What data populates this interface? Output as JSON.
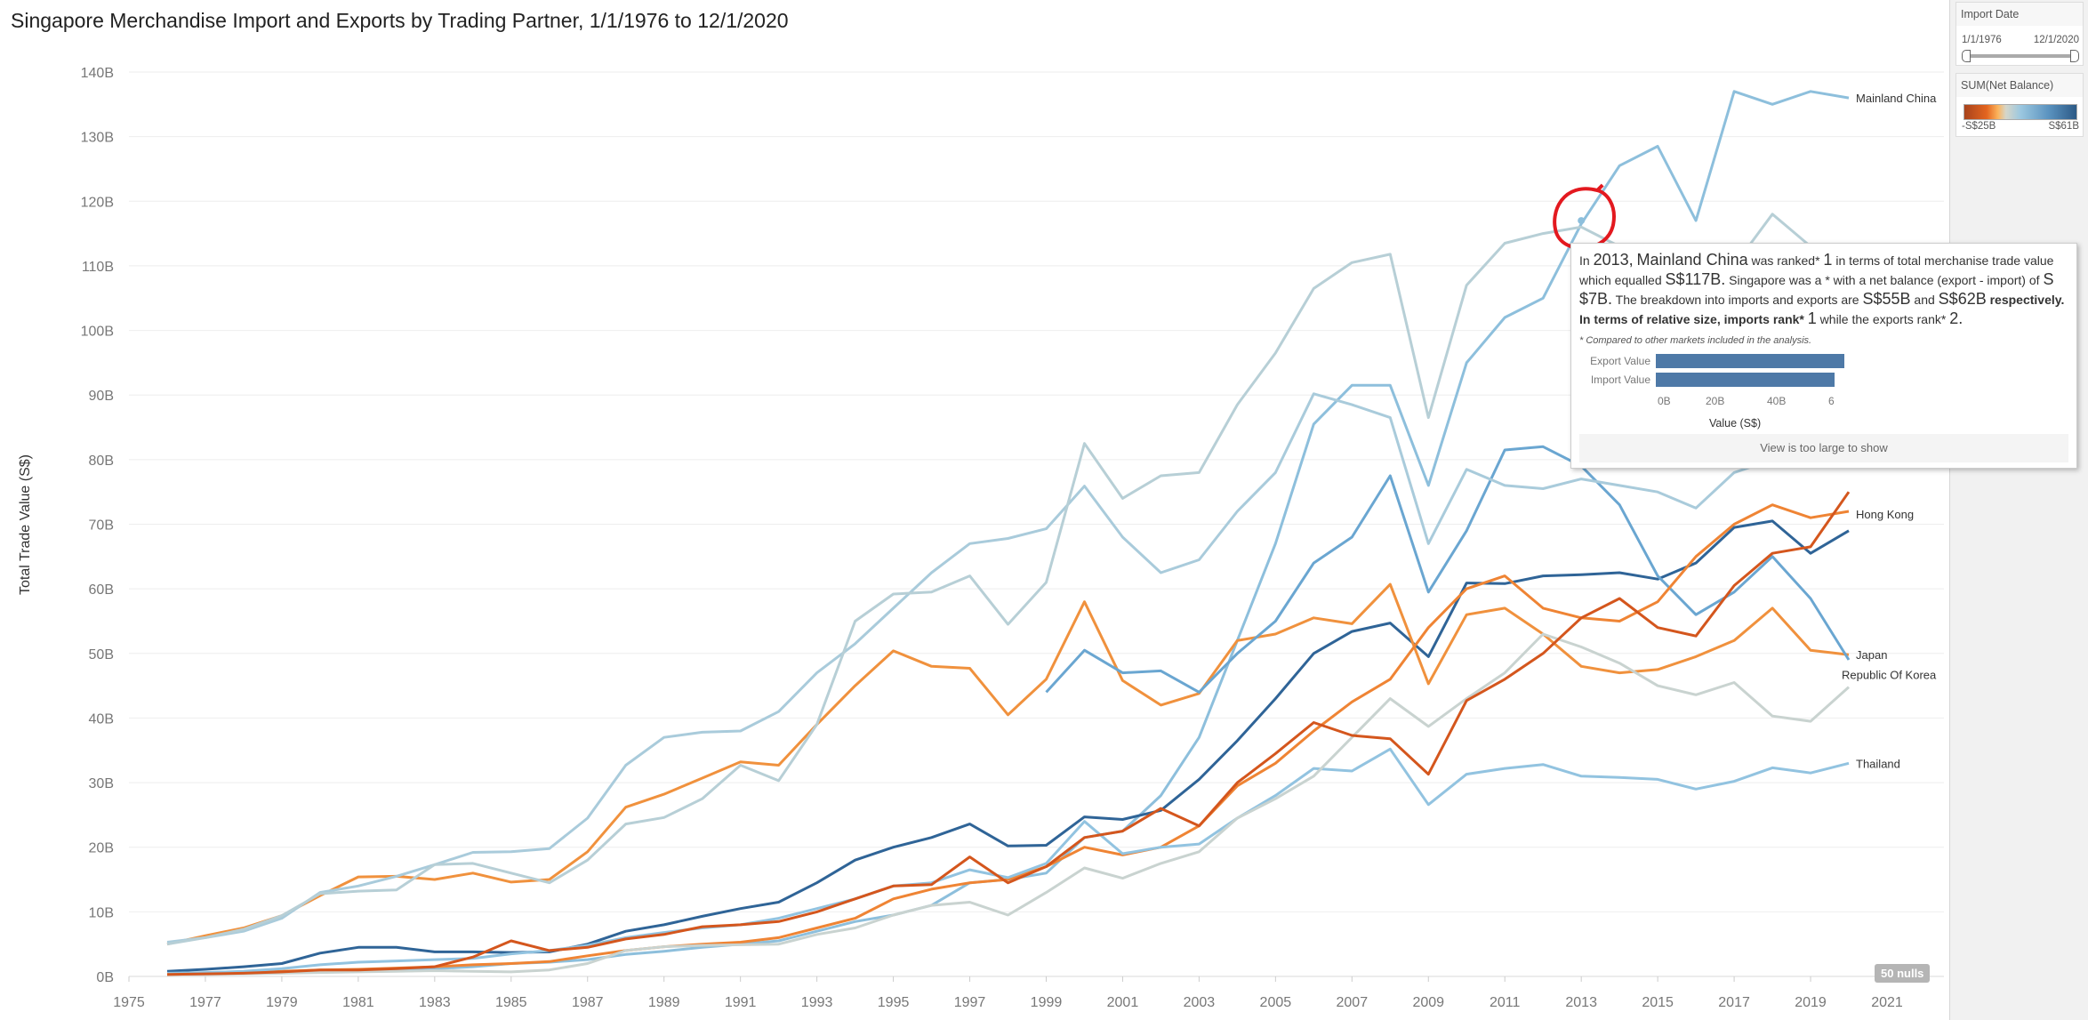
{
  "title": "Singapore Merchandise Import and Exports by Trading Partner, 1/1/1976 to 12/1/2020",
  "filters": {
    "import_date": {
      "label": "Import Date",
      "start": "1/1/1976",
      "end": "12/1/2020"
    },
    "net_balance": {
      "label": "SUM(Net Balance)",
      "min": "-S$25B",
      "max": "S$61B"
    }
  },
  "nulls_badge": "50 nulls",
  "tooltip": {
    "p1": "In ",
    "year": "2013,",
    "country": "Mainland China",
    "p2": " was ranked* ",
    "rank": "1",
    "p3": " in terms of total merchanise trade value which equalled ",
    "total": "S$117B.",
    "p4": " Singapore was a * with a net balance (export - import) of ",
    "net": "S $7B.",
    "p5": " The breakdown into imports and exports are ",
    "imports": "S$55B",
    "p6": " and ",
    "exports": "S$62B",
    "p7": " respectively.",
    "p8": "In terms of relative size, imports rank* ",
    "irank": "1",
    "p9": " while the exports rank* ",
    "erank": "2.",
    "note": "* Compared to other markets included in the analysis.",
    "bar_chart": {
      "labels": [
        "Export Value",
        "Import Value"
      ],
      "values": [
        62,
        55
      ],
      "ticks": [
        "0B",
        "20B",
        "40B",
        "6"
      ],
      "axis_label": "Value (S$)",
      "max": 58
    },
    "view_message": "View is too large to show"
  },
  "chart_data": {
    "type": "line",
    "title": "Singapore Merchandise Import and Exports by Trading Partner, 1/1/1976 to 12/1/2020",
    "xlabel": "",
    "ylabel": "Total Trade Value (S$)",
    "ylim": [
      0,
      140
    ],
    "xlim": [
      1975,
      2021
    ],
    "x_start": 1976,
    "x_ticks": [
      "1975",
      "1977",
      "1979",
      "1981",
      "1983",
      "1985",
      "1987",
      "1989",
      "1991",
      "1993",
      "1995",
      "1997",
      "1999",
      "2001",
      "2003",
      "2005",
      "2007",
      "2009",
      "2011",
      "2013",
      "2015",
      "2017",
      "2019",
      "2021"
    ],
    "y_ticks": [
      "0B",
      "10B",
      "20B",
      "30B",
      "40B",
      "50B",
      "60B",
      "70B",
      "80B",
      "90B",
      "100B",
      "110B",
      "120B",
      "130B",
      "140B"
    ],
    "highlight": {
      "year": 2013,
      "value": 117
    },
    "series": [
      {
        "label": "Mainland China",
        "color": "#8dbfdc",
        "values": [
          0.3,
          0.4,
          0.5,
          0.6,
          0.8,
          1.0,
          1.1,
          1.2,
          1.5,
          2.0,
          2.2,
          2.6,
          3.4,
          3.9,
          4.5,
          5.0,
          5.5,
          7.0,
          8.5,
          9.5,
          11,
          14.5,
          15,
          16,
          21.5,
          22.5,
          28,
          37,
          52,
          67,
          85.5,
          91.5,
          91.5,
          76,
          95,
          102,
          105,
          116.5,
          125.5,
          128.5,
          117,
          137,
          135,
          137,
          136
        ]
      },
      {
        "label": "Hong Kong",
        "color": "#2f6497",
        "values": [
          0.8,
          1.1,
          1.5,
          2.0,
          3.6,
          4.5,
          4.5,
          3.8,
          3.8,
          3.7,
          3.8,
          5.0,
          7.0,
          8.0,
          9.3,
          10.5,
          11.5,
          14.5,
          18,
          20,
          21.5,
          23.6,
          20.2,
          20.3,
          24.7,
          24.3,
          25.7,
          30.5,
          36.5,
          43,
          50,
          53.4,
          54.7,
          49.5,
          60.9,
          60.8,
          62,
          62.2,
          62.5,
          61.5,
          64,
          69.5,
          70.5,
          65.5,
          69
        ]
      },
      {
        "label": "Japan",
        "color": "#f0913d",
        "values": [
          5,
          6.3,
          7.5,
          9.4,
          12.5,
          15.4,
          15.5,
          15,
          16,
          14.6,
          15,
          19.3,
          26.2,
          28.2,
          30.7,
          33.2,
          32.7,
          39,
          45,
          50.4,
          48,
          47.7,
          40.5,
          46,
          58,
          45.8,
          42,
          43.8,
          52,
          53,
          55.5,
          54.6,
          60.7,
          45.3,
          56,
          57,
          53,
          48,
          47,
          47.5,
          49.5,
          52,
          57,
          50.5,
          49.8
        ]
      },
      {
        "label": "",
        "color": "#6aa6d1",
        "values": [
          null,
          null,
          null,
          null,
          null,
          null,
          null,
          null,
          null,
          null,
          null,
          null,
          null,
          null,
          null,
          null,
          null,
          null,
          null,
          null,
          null,
          null,
          null,
          44,
          50.5,
          47,
          47.3,
          44,
          50,
          55,
          64,
          68,
          77.5,
          59.5,
          69,
          81.5,
          82,
          79,
          73,
          62,
          56,
          59.5,
          65,
          58.5,
          49
        ]
      },
      {
        "label": "",
        "color": "#a9cbdb",
        "values": [
          5.3,
          6,
          7,
          9,
          13,
          14,
          15.5,
          17.3,
          19.2,
          19.3,
          19.8,
          24.5,
          32.7,
          37,
          37.8,
          38,
          41,
          47,
          51.5,
          57,
          62.5,
          67,
          67.8,
          69.3,
          75.9,
          68,
          62.5,
          64.5,
          72,
          78,
          90.2,
          88.5,
          86.5,
          67,
          78.5,
          76,
          75.5,
          77,
          76,
          75,
          72.5,
          78,
          80,
          81,
          83
        ]
      },
      {
        "label": "",
        "color": "#b7cfd6",
        "values": [
          5,
          6,
          7.3,
          9.4,
          12.8,
          13.2,
          13.4,
          17.3,
          17.5,
          16,
          14.5,
          18,
          23.6,
          24.6,
          27.5,
          32.7,
          30.3,
          39,
          55,
          59.2,
          59.5,
          62,
          54.5,
          61,
          82.5,
          74,
          77.5,
          78,
          88.5,
          96.5,
          106.5,
          110.5,
          111.8,
          86.5,
          107,
          113.5,
          115,
          116,
          113,
          108,
          105,
          110,
          118,
          113,
          108
        ]
      },
      {
        "label": "",
        "color": "#ef8434",
        "values": [
          0.3,
          0.4,
          0.6,
          0.8,
          1.0,
          1.1,
          1.3,
          1.5,
          1.8,
          2.0,
          2.3,
          3.2,
          4.0,
          4.6,
          5.0,
          5.3,
          6.0,
          7.5,
          9.0,
          12,
          13.5,
          14.5,
          15,
          17,
          20,
          18.8,
          20,
          23.3,
          29.5,
          33,
          38,
          42.5,
          46,
          54,
          60,
          62,
          57,
          55.5,
          55,
          58,
          65,
          70,
          73,
          71,
          72
        ]
      },
      {
        "label": "Thailand",
        "color": "#92c3e0",
        "values": [
          0.5,
          0.6,
          0.8,
          1.2,
          1.8,
          2.2,
          2.4,
          2.6,
          2.8,
          3.5,
          4,
          4.8,
          6,
          6.8,
          7.5,
          8,
          9,
          10.5,
          12,
          14,
          14.5,
          16.5,
          15.3,
          17.5,
          24,
          19,
          20,
          20.5,
          24.5,
          28,
          32.2,
          31.8,
          35.2,
          26.6,
          31.3,
          32.2,
          32.8,
          31,
          30.8,
          30.5,
          29,
          30.2,
          32.3,
          31.5,
          33
        ]
      },
      {
        "label": "Republic Of Korea",
        "color": "#c9d3d0",
        "values": [
          0.3,
          0.3,
          0.4,
          0.5,
          0.6,
          0.7,
          0.8,
          0.9,
          0.8,
          0.7,
          1,
          2,
          4,
          4.6,
          4.8,
          4.9,
          5,
          6.5,
          7.5,
          9.5,
          11,
          11.5,
          9.5,
          13,
          16.8,
          15.2,
          17.5,
          19.3,
          24.5,
          27.5,
          31,
          37,
          43,
          38.7,
          43,
          47,
          53,
          51,
          48.5,
          45,
          43.6,
          45.5,
          40.3,
          39.5,
          44.8
        ]
      },
      {
        "label": "",
        "color": "#d4561d",
        "values": [
          0.3,
          0.4,
          0.5,
          0.7,
          1.0,
          1.0,
          1.2,
          1.5,
          3.0,
          5.5,
          4.0,
          4.5,
          5.8,
          6.5,
          7.7,
          8.0,
          8.5,
          10,
          12,
          14,
          14.2,
          18.5,
          14.5,
          17,
          21.5,
          22.5,
          26,
          23.3,
          30,
          34.5,
          39.3,
          37.3,
          36.8,
          31.3,
          42.7,
          46,
          50,
          55.5,
          58.5,
          54,
          52.7,
          60.5,
          65.5,
          66.5,
          75
        ]
      }
    ]
  }
}
